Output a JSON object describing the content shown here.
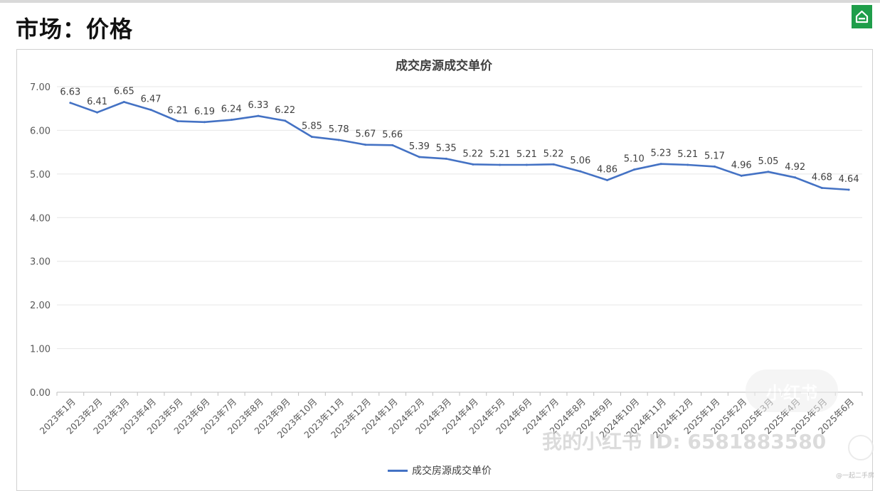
{
  "page": {
    "title": "市场：价格",
    "logo_icon": "green-house-icon",
    "brand_color": "#1f9e4a"
  },
  "watermark": {
    "text": "我的小红书 ID: 6581883580",
    "badge_text": "小红书",
    "corner_text": "@一起二手房"
  },
  "chart_data": {
    "type": "line",
    "title": "成交房源成交单价",
    "xlabel": "",
    "ylabel": "",
    "ylim": [
      0,
      7
    ],
    "yticks": [
      "0.00",
      "1.00",
      "2.00",
      "3.00",
      "4.00",
      "5.00",
      "6.00",
      "7.00"
    ],
    "grid": true,
    "legend_position": "bottom",
    "categories": [
      "2023年1月",
      "2023年2月",
      "2023年3月",
      "2023年4月",
      "2023年5月",
      "2023年6月",
      "2023年7月",
      "2023年8月",
      "2023年9月",
      "2023年10月",
      "2023年11月",
      "2023年12月",
      "2024年1月",
      "2024年2月",
      "2024年3月",
      "2024年4月",
      "2024年5月",
      "2024年6月",
      "2024年7月",
      "2024年8月",
      "2024年9月",
      "2024年10月",
      "2024年11月",
      "2024年12月",
      "2025年1月",
      "2025年2月",
      "2025年3月",
      "2025年4月",
      "2025年5月",
      "2025年6月"
    ],
    "series": [
      {
        "name": "成交房源成交单价",
        "color": "#4472c4",
        "values": [
          6.63,
          6.41,
          6.65,
          6.47,
          6.21,
          6.19,
          6.24,
          6.33,
          6.22,
          5.85,
          5.78,
          5.67,
          5.66,
          5.39,
          5.35,
          5.22,
          5.21,
          5.21,
          5.22,
          5.06,
          4.86,
          5.1,
          5.23,
          5.21,
          5.17,
          4.96,
          5.05,
          4.92,
          4.68,
          4.64
        ],
        "labels": [
          "6.63",
          "6.41",
          "6.65",
          "6.47",
          "6.21",
          "6.19",
          "6.24",
          "6.33",
          "6.22",
          "5.85",
          "5.78",
          "5.67",
          "5.66",
          "5.39",
          "5.35",
          "5.22",
          "5.21",
          "5.21",
          "5.22",
          "5.06",
          "4.86",
          "5.10",
          "5.23",
          "5.21",
          "5.17",
          "4.96",
          "5.05",
          "4.92",
          "4.68",
          "4.64"
        ]
      }
    ]
  }
}
